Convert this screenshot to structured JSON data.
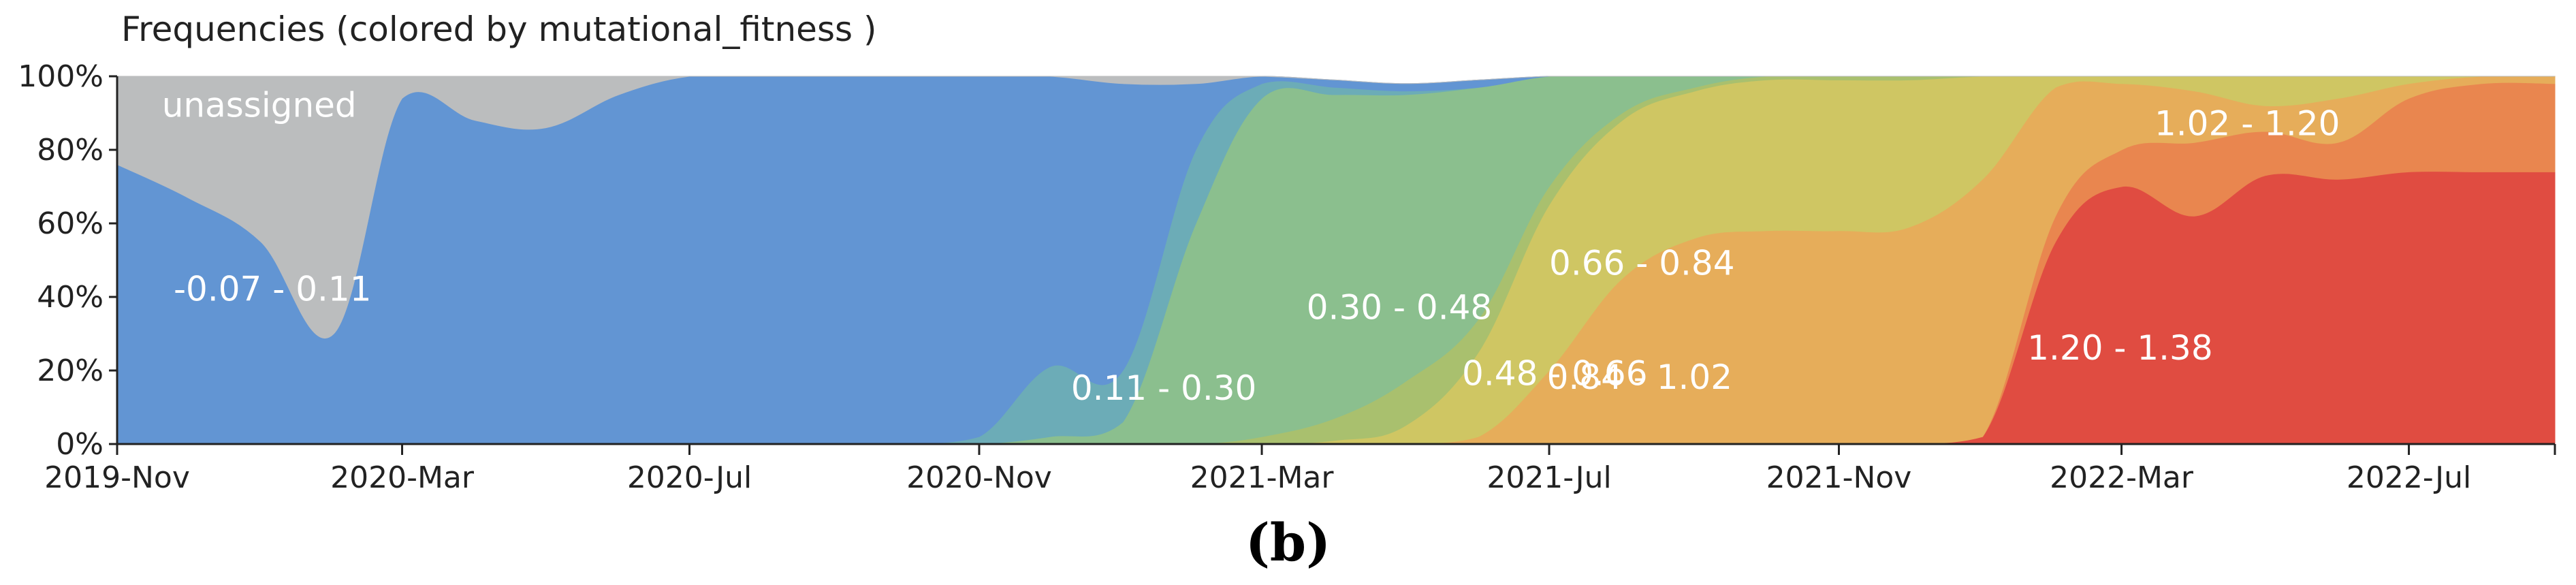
{
  "title": "Frequencies (colored by mutational_fitness )",
  "caption": "(b)",
  "chart_data": {
    "type": "area",
    "stacked": true,
    "x": [
      "2019-11-01",
      "2019-12-01",
      "2020-01-01",
      "2020-02-01",
      "2020-03-01",
      "2020-04-01",
      "2020-05-01",
      "2020-06-01",
      "2020-07-01",
      "2020-08-01",
      "2020-09-01",
      "2020-10-01",
      "2020-11-01",
      "2020-12-01",
      "2021-01-01",
      "2021-02-01",
      "2021-03-01",
      "2021-04-01",
      "2021-05-01",
      "2021-06-01",
      "2021-07-01",
      "2021-08-01",
      "2021-09-01",
      "2021-10-01",
      "2021-11-01",
      "2021-12-01",
      "2022-01-01",
      "2022-02-01",
      "2022-03-01",
      "2022-04-01",
      "2022-05-01",
      "2022-06-01",
      "2022-07-01",
      "2022-08-01",
      "2022-09-01"
    ],
    "ylim": [
      0,
      1
    ],
    "yticks": [
      "0%",
      "20%",
      "40%",
      "60%",
      "80%",
      "100%"
    ],
    "xticks": [
      {
        "date": "2019-11-01",
        "label": "2019-Nov"
      },
      {
        "date": "2020-03-01",
        "label": "2020-Mar"
      },
      {
        "date": "2020-07-01",
        "label": "2020-Jul"
      },
      {
        "date": "2020-11-01",
        "label": "2020-Nov"
      },
      {
        "date": "2021-03-01",
        "label": "2021-Mar"
      },
      {
        "date": "2021-07-01",
        "label": "2021-Jul"
      },
      {
        "date": "2021-11-01",
        "label": "2021-Nov"
      },
      {
        "date": "2022-03-01",
        "label": "2022-Mar"
      },
      {
        "date": "2022-07-01",
        "label": "2022-Jul"
      }
    ],
    "series": [
      {
        "name": "1.20 - 1.38",
        "color": "#e04c41",
        "values": [
          0,
          0,
          0,
          0,
          0,
          0,
          0,
          0,
          0,
          0,
          0,
          0,
          0,
          0,
          0,
          0,
          0,
          0,
          0,
          0,
          0,
          0,
          0,
          0,
          0,
          0,
          0.02,
          0.55,
          0.7,
          0.62,
          0.73,
          0.72,
          0.74,
          0.74,
          0.74
        ],
        "label_at": {
          "date": "2022-01-20",
          "y": 0.23
        }
      },
      {
        "name": "1.02 - 1.20",
        "color": "#e9864f",
        "values": [
          0,
          0,
          0,
          0,
          0,
          0,
          0,
          0,
          0,
          0,
          0,
          0,
          0,
          0,
          0,
          0,
          0,
          0,
          0,
          0,
          0,
          0,
          0,
          0,
          0,
          0,
          0,
          0.07,
          0.1,
          0.2,
          0.12,
          0.1,
          0.2,
          0.24,
          0.24
        ],
        "label_at": {
          "date": "2022-03-15",
          "y": 0.84
        }
      },
      {
        "name": "0.84 - 1.02",
        "color": "#e6ad5a",
        "values": [
          0,
          0,
          0,
          0,
          0,
          0,
          0,
          0,
          0,
          0,
          0,
          0,
          0,
          0,
          0,
          0,
          0,
          0,
          0,
          0.02,
          0.2,
          0.45,
          0.56,
          0.58,
          0.58,
          0.59,
          0.7,
          0.35,
          0.18,
          0.14,
          0.07,
          0.12,
          0.04,
          0.02,
          0.02
        ],
        "label_at": {
          "date": "2021-06-30",
          "y": 0.15
        }
      },
      {
        "name": "0.66 - 0.84",
        "color": "#cfc663",
        "values": [
          0,
          0,
          0,
          0,
          0,
          0,
          0,
          0,
          0,
          0,
          0,
          0,
          0,
          0,
          0,
          0,
          0,
          0.01,
          0.05,
          0.23,
          0.45,
          0.43,
          0.4,
          0.41,
          0.41,
          0.4,
          0.28,
          0.03,
          0.02,
          0.04,
          0.08,
          0.06,
          0.02,
          0,
          0
        ],
        "label_at": {
          "date": "2021-07-01",
          "y": 0.46
        }
      },
      {
        "name": "0.48 - 0.66",
        "color": "#a9c06e",
        "values": [
          0,
          0,
          0,
          0,
          0,
          0,
          0,
          0,
          0,
          0,
          0,
          0,
          0,
          0,
          0,
          0,
          0.02,
          0.06,
          0.12,
          0.09,
          0.05,
          0.02,
          0.01,
          0.01,
          0.01,
          0.01,
          0,
          0,
          0,
          0,
          0,
          0,
          0,
          0,
          0
        ],
        "label_at": {
          "date": "2021-05-25",
          "y": 0.16
        }
      },
      {
        "name": "0.30 - 0.48",
        "color": "#8bbf8e",
        "values": [
          0,
          0,
          0,
          0,
          0,
          0,
          0,
          0,
          0,
          0,
          0,
          0,
          0,
          0.02,
          0.06,
          0.6,
          0.92,
          0.88,
          0.78,
          0.63,
          0.3,
          0.1,
          0.03,
          0,
          0,
          0,
          0,
          0,
          0,
          0,
          0,
          0,
          0,
          0,
          0
        ],
        "label_at": {
          "date": "2021-03-20",
          "y": 0.34
        }
      },
      {
        "name": "0.11 - 0.30",
        "color": "#6cacb7",
        "values": [
          0,
          0,
          0,
          0,
          0,
          0,
          0,
          0,
          0,
          0,
          0,
          0,
          0.02,
          0.19,
          0.14,
          0.2,
          0.04,
          0.02,
          0.01,
          0,
          0,
          0,
          0,
          0,
          0,
          0,
          0,
          0,
          0,
          0,
          0,
          0,
          0,
          0,
          0
        ],
        "label_at": {
          "date": "2020-12-10",
          "y": 0.12
        }
      },
      {
        "name": "-0.07 - 0.11",
        "color": "#6295d3",
        "values": [
          0.76,
          0.67,
          0.55,
          0.3,
          0.94,
          0.88,
          0.86,
          0.95,
          1.0,
          1.0,
          1.0,
          1.0,
          0.98,
          0.79,
          0.78,
          0.18,
          0.02,
          0.02,
          0.02,
          0.02,
          0,
          0,
          0,
          0,
          0,
          0,
          0,
          0,
          0,
          0,
          0,
          0,
          0,
          0,
          0
        ],
        "label_at": {
          "date": "2019-11-25",
          "y": 0.39
        }
      },
      {
        "name": "unassigned",
        "color": "#bbbdbe",
        "values": [
          0.24,
          0.33,
          0.45,
          0.7,
          0.06,
          0.12,
          0.14,
          0.05,
          0,
          0,
          0,
          0,
          0,
          0,
          0.02,
          0.02,
          0,
          0,
          0,
          0,
          0,
          0,
          0,
          0,
          0,
          0,
          0,
          0,
          0,
          0,
          0,
          0,
          0,
          0,
          0
        ],
        "label_at": {
          "date": "2019-11-20",
          "y": 0.89
        }
      }
    ]
  }
}
